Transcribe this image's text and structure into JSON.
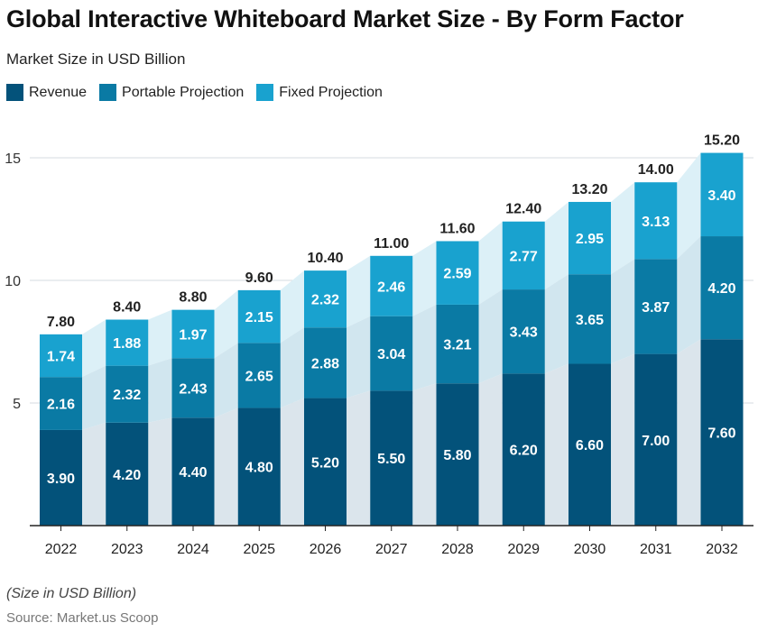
{
  "title": "Global Interactive Whiteboard Market Size - By Form Factor",
  "subtitle": "Market Size in USD Billion",
  "note": "(Size in USD Billion)",
  "source": "Source: Market.us Scoop",
  "chart_data": {
    "type": "bar",
    "stacked": true,
    "categories": [
      "2022",
      "2023",
      "2024",
      "2025",
      "2026",
      "2027",
      "2028",
      "2029",
      "2030",
      "2031",
      "2032"
    ],
    "series": [
      {
        "name": "Revenue",
        "color": "#03527a",
        "values": [
          3.9,
          4.2,
          4.4,
          4.8,
          5.2,
          5.5,
          5.8,
          6.2,
          6.6,
          7.0,
          7.6
        ]
      },
      {
        "name": "Portable Projection",
        "color": "#0a7aa4",
        "values": [
          2.16,
          2.32,
          2.43,
          2.65,
          2.88,
          3.04,
          3.21,
          3.43,
          3.65,
          3.87,
          4.2
        ]
      },
      {
        "name": "Fixed Projection",
        "color": "#19a2cf",
        "values": [
          1.74,
          1.88,
          1.97,
          2.15,
          2.32,
          2.46,
          2.59,
          2.77,
          2.95,
          3.13,
          3.4
        ]
      }
    ],
    "totals": [
      7.8,
      8.4,
      8.8,
      9.6,
      10.4,
      11.0,
      11.6,
      12.4,
      13.2,
      14.0,
      15.2
    ],
    "yticks": [
      5,
      10,
      15
    ],
    "ylim": [
      0,
      15
    ],
    "grid": true,
    "legend": "top-left"
  }
}
